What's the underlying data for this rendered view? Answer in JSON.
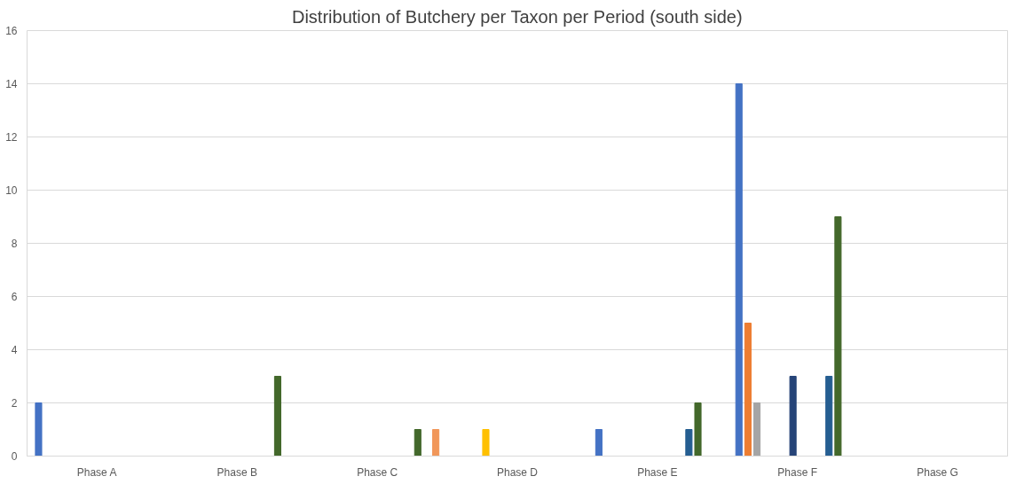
{
  "chart_data": {
    "type": "bar",
    "title": "Distribution of Butchery per Taxon per Period (south side)",
    "categories": [
      "Phase A",
      "Phase B",
      "Phase C",
      "Phase D",
      "Phase E",
      "Phase F",
      "Phase G"
    ],
    "series": [
      {
        "color": "#4472c4",
        "values": [
          2,
          null,
          null,
          null,
          1,
          14,
          null
        ]
      },
      {
        "color": "#ed7d31",
        "values": [
          null,
          null,
          null,
          null,
          null,
          5,
          null
        ]
      },
      {
        "color": "#a5a5a5",
        "values": [
          null,
          null,
          null,
          null,
          null,
          2,
          null
        ]
      },
      {
        "color": "#ffc000",
        "values": [
          null,
          null,
          null,
          1,
          null,
          null,
          null
        ]
      },
      {
        "values": [
          null,
          null,
          null,
          null,
          null,
          null,
          null
        ]
      },
      {
        "values": [
          null,
          null,
          null,
          null,
          null,
          null,
          null
        ]
      },
      {
        "color": "#264478",
        "values": [
          null,
          null,
          null,
          null,
          null,
          3,
          null
        ]
      },
      {
        "values": [
          null,
          null,
          null,
          null,
          null,
          null,
          null
        ]
      },
      {
        "values": [
          null,
          null,
          null,
          null,
          null,
          null,
          null
        ]
      },
      {
        "values": [
          null,
          null,
          null,
          null,
          null,
          null,
          null
        ]
      },
      {
        "color": "#255e91",
        "values": [
          null,
          null,
          null,
          null,
          1,
          3,
          null
        ]
      },
      {
        "color": "#43682b",
        "values": [
          null,
          3,
          1,
          null,
          2,
          9,
          null
        ]
      },
      {
        "values": [
          null,
          null,
          null,
          null,
          null,
          null,
          null
        ]
      },
      {
        "color": "#f1975a",
        "values": [
          null,
          null,
          1,
          null,
          null,
          null,
          null
        ]
      }
    ],
    "ylim": [
      0,
      16
    ],
    "yticks": [
      0,
      2,
      4,
      6,
      8,
      10,
      12,
      14,
      16
    ],
    "grid": "y"
  }
}
